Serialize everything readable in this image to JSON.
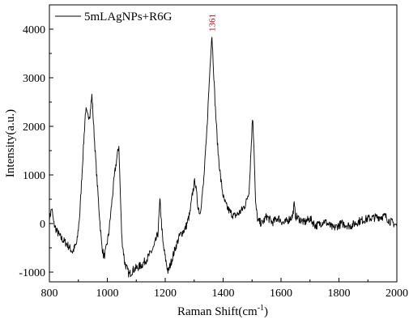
{
  "chart_data": {
    "type": "line",
    "title": "",
    "xlabel": "Raman Shift(cm",
    "xlabel_superscript": "-1",
    "xlabel_suffix": ")",
    "ylabel": "Intensity(a.u.)",
    "xlim": [
      800,
      2000
    ],
    "ylim": [
      -1200,
      4500
    ],
    "xticks": [
      800,
      1000,
      1200,
      1400,
      1600,
      1800,
      2000
    ],
    "yticks": [
      -1000,
      0,
      1000,
      2000,
      3000,
      4000
    ],
    "grid": false,
    "legend_position": "top-left",
    "line_color": "#000000",
    "annotation_color": "#c00000",
    "annotations": [
      {
        "x": 1361,
        "y": 3950,
        "text": "1361"
      }
    ],
    "series": [
      {
        "name": "5mLAgNPs+R6G",
        "keypoints": [
          [
            800,
            100
          ],
          [
            808,
            320
          ],
          [
            815,
            0
          ],
          [
            825,
            -150
          ],
          [
            840,
            -300
          ],
          [
            860,
            -420
          ],
          [
            880,
            -580
          ],
          [
            895,
            -400
          ],
          [
            905,
            200
          ],
          [
            915,
            1300
          ],
          [
            925,
            2350
          ],
          [
            932,
            2200
          ],
          [
            940,
            2250
          ],
          [
            947,
            2650
          ],
          [
            952,
            2100
          ],
          [
            960,
            1300
          ],
          [
            970,
            400
          ],
          [
            980,
            -400
          ],
          [
            988,
            -700
          ],
          [
            995,
            -550
          ],
          [
            1005,
            -200
          ],
          [
            1015,
            400
          ],
          [
            1025,
            1000
          ],
          [
            1033,
            1350
          ],
          [
            1040,
            1600
          ],
          [
            1045,
            600
          ],
          [
            1050,
            -300
          ],
          [
            1060,
            -800
          ],
          [
            1075,
            -1050
          ],
          [
            1090,
            -950
          ],
          [
            1105,
            -900
          ],
          [
            1120,
            -850
          ],
          [
            1140,
            -700
          ],
          [
            1160,
            -500
          ],
          [
            1175,
            -200
          ],
          [
            1182,
            500
          ],
          [
            1186,
            100
          ],
          [
            1192,
            -400
          ],
          [
            1200,
            -700
          ],
          [
            1210,
            -1000
          ],
          [
            1220,
            -800
          ],
          [
            1235,
            -500
          ],
          [
            1250,
            -250
          ],
          [
            1270,
            -100
          ],
          [
            1285,
            200
          ],
          [
            1295,
            650
          ],
          [
            1303,
            900
          ],
          [
            1312,
            400
          ],
          [
            1320,
            200
          ],
          [
            1332,
            800
          ],
          [
            1342,
            1700
          ],
          [
            1352,
            2900
          ],
          [
            1357,
            3500
          ],
          [
            1361,
            3900
          ],
          [
            1366,
            3300
          ],
          [
            1372,
            2500
          ],
          [
            1382,
            1500
          ],
          [
            1392,
            900
          ],
          [
            1402,
            500
          ],
          [
            1412,
            350
          ],
          [
            1422,
            250
          ],
          [
            1438,
            150
          ],
          [
            1452,
            200
          ],
          [
            1465,
            280
          ],
          [
            1478,
            400
          ],
          [
            1490,
            700
          ],
          [
            1497,
            1600
          ],
          [
            1502,
            2250
          ],
          [
            1507,
            1500
          ],
          [
            1512,
            400
          ],
          [
            1520,
            50
          ],
          [
            1535,
            0
          ],
          [
            1550,
            150
          ],
          [
            1570,
            20
          ],
          [
            1590,
            120
          ],
          [
            1610,
            0
          ],
          [
            1630,
            100
          ],
          [
            1640,
            150
          ],
          [
            1645,
            400
          ],
          [
            1650,
            150
          ],
          [
            1680,
            20
          ],
          [
            1700,
            100
          ],
          [
            1720,
            -50
          ],
          [
            1750,
            50
          ],
          [
            1780,
            -100
          ],
          [
            1810,
            0
          ],
          [
            1840,
            -50
          ],
          [
            1870,
            50
          ],
          [
            1900,
            100
          ],
          [
            1930,
            130
          ],
          [
            1960,
            150
          ],
          [
            1975,
            50
          ],
          [
            1990,
            0
          ],
          [
            2000,
            -50
          ]
        ]
      }
    ]
  }
}
